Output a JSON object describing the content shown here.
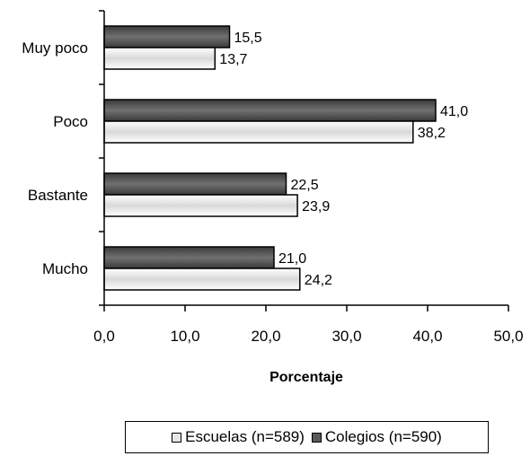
{
  "chart_data": {
    "type": "bar",
    "orientation": "horizontal",
    "categories": [
      "Muy poco",
      "Poco",
      "Bastante",
      "Mucho"
    ],
    "series": [
      {
        "name": "Escuelas (n=589)",
        "values": [
          13.7,
          38.2,
          23.9,
          24.2
        ],
        "value_labels": [
          "13,7",
          "38,2",
          "23,9",
          "24,2"
        ],
        "color": "#e6e6e6"
      },
      {
        "name": "Colegios (n=590)",
        "values": [
          15.5,
          41.0,
          22.5,
          21.0
        ],
        "value_labels": [
          "15,5",
          "41,0",
          "22,5",
          "21,0"
        ],
        "color": "#5a5a5a"
      }
    ],
    "xlabel": "Porcentaje",
    "ylabel": "",
    "xlim": [
      0,
      50
    ],
    "x_ticks": [
      0,
      10,
      20,
      30,
      40,
      50
    ],
    "x_tick_labels": [
      "0,0",
      "10,0",
      "20,0",
      "30,0",
      "40,0",
      "50,0"
    ],
    "grid": false,
    "legend_position": "bottom"
  }
}
